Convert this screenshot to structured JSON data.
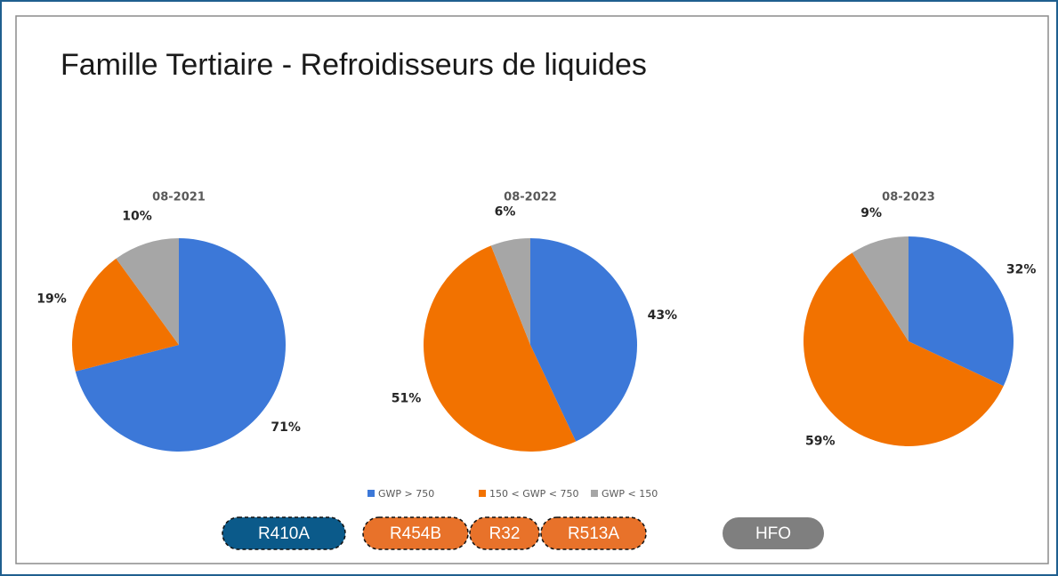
{
  "title": "Famille Tertiaire - Refroidisseurs de liquides",
  "tags": [
    "R410A",
    "R454B",
    "R32",
    "R513A",
    "HFO"
  ],
  "chart_data": [
    {
      "type": "pie",
      "title": "08-2021",
      "categories": [
        "GWP > 750",
        "150 < GWP < 750",
        "GWP < 150"
      ],
      "values": [
        71,
        19,
        10
      ],
      "value_labels": [
        "71%",
        "19%",
        "10%"
      ],
      "colors": [
        "#3c78d8",
        "#f27200",
        "#a6a6a6"
      ]
    },
    {
      "type": "pie",
      "title": "08-2022",
      "categories": [
        "GWP > 750",
        "150 < GWP < 750",
        "GWP < 150"
      ],
      "values": [
        43,
        51,
        6
      ],
      "value_labels": [
        "43%",
        "51%",
        "6%"
      ],
      "colors": [
        "#3c78d8",
        "#f27200",
        "#a6a6a6"
      ]
    },
    {
      "type": "pie",
      "title": "08-2023",
      "categories": [
        "GWP > 750",
        "150 < GWP < 750",
        "GWP < 150"
      ],
      "values": [
        32,
        59,
        9
      ],
      "value_labels": [
        "32%",
        "59%",
        "9%"
      ],
      "colors": [
        "#3c78d8",
        "#f27200",
        "#a6a6a6"
      ]
    }
  ]
}
